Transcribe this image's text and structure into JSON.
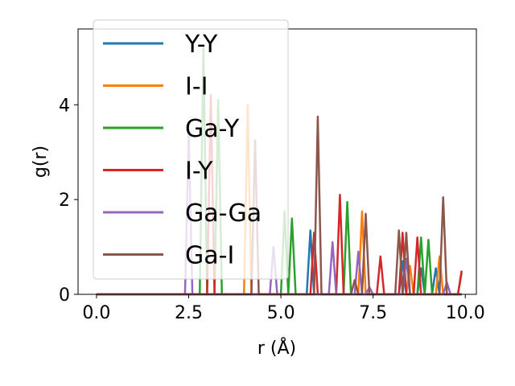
{
  "chart_data": {
    "type": "line",
    "title": "",
    "xlabel": "r (Å)",
    "ylabel": "g(r)",
    "xlim": [
      -0.5,
      10.3
    ],
    "ylim": [
      0,
      5.6
    ],
    "xticks": [
      0.0,
      2.5,
      5.0,
      7.5,
      10.0
    ],
    "xtick_labels": [
      "0.0",
      "2.5",
      "5.0",
      "7.5",
      "10.0"
    ],
    "yticks": [
      0,
      2,
      4
    ],
    "ytick_labels": [
      "0",
      "2",
      "4"
    ],
    "grid": false,
    "legend_position": "top-left",
    "series": [
      {
        "name": "Y-Y",
        "color": "#1f77b4",
        "peaks": [
          [
            5.8,
            1.35
          ],
          [
            8.3,
            0.7
          ],
          [
            8.8,
            0.55
          ],
          [
            9.2,
            0.55
          ]
        ]
      },
      {
        "name": "I-I",
        "color": "#ff7f0e",
        "peaks": [
          [
            4.1,
            4.0
          ],
          [
            7.2,
            1.75
          ],
          [
            8.5,
            0.6
          ],
          [
            9.3,
            0.8
          ]
        ]
      },
      {
        "name": "Ga-Y",
        "color": "#2ca02c",
        "peaks": [
          [
            2.9,
            5.2
          ],
          [
            3.3,
            4.1
          ],
          [
            5.1,
            1.75
          ],
          [
            5.3,
            1.6
          ],
          [
            6.8,
            1.95
          ],
          [
            8.8,
            1.2
          ],
          [
            9.0,
            1.15
          ],
          [
            9.9,
            0.45
          ]
        ]
      },
      {
        "name": "I-Y",
        "color": "#d62728",
        "peaks": [
          [
            3.1,
            4.2
          ],
          [
            5.9,
            1.3
          ],
          [
            6.6,
            2.1
          ],
          [
            7.7,
            0.8
          ],
          [
            8.3,
            1.3
          ],
          [
            8.7,
            1.2
          ],
          [
            9.9,
            0.5
          ]
        ]
      },
      {
        "name": "Ga-Ga",
        "color": "#9467bd",
        "peaks": [
          [
            2.5,
            3.4
          ],
          [
            4.8,
            1.0
          ],
          [
            6.4,
            1.1
          ],
          [
            7.1,
            0.9
          ],
          [
            7.4,
            0.15
          ],
          [
            8.4,
            0.75
          ],
          [
            9.5,
            0.25
          ]
        ]
      },
      {
        "name": "Ga-I",
        "color": "#8c564b",
        "peaks": [
          [
            4.3,
            3.25
          ],
          [
            6.0,
            3.75
          ],
          [
            7.0,
            0.3
          ],
          [
            7.3,
            1.7
          ],
          [
            8.2,
            1.35
          ],
          [
            8.4,
            1.3
          ],
          [
            9.4,
            2.05
          ]
        ]
      }
    ]
  }
}
